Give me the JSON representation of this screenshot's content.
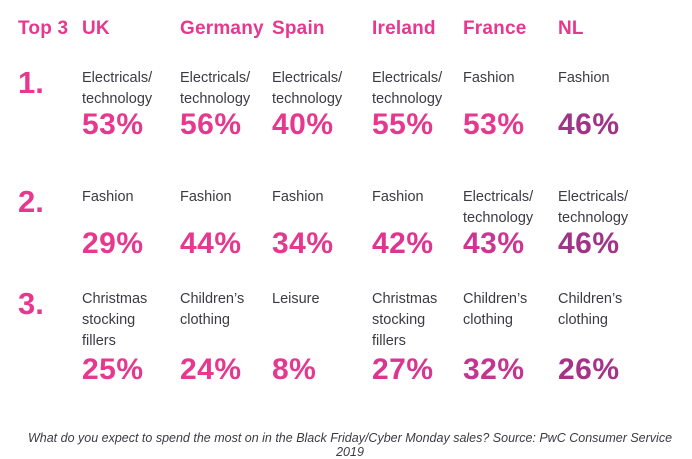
{
  "header": {
    "title": "Top 3",
    "countries": [
      "UK",
      "Germany",
      "Spain",
      "Ireland",
      "France",
      "NL"
    ]
  },
  "colors": {
    "accent_pink": "#e5388e",
    "dark_text": "#3b3b43"
  },
  "rows": [
    {
      "rank": "1.",
      "cells": [
        {
          "category": "Electricals/\ntechnology",
          "value": "53%",
          "color": "#e5388e"
        },
        {
          "category": "Electricals/\ntechnology",
          "value": "56%",
          "color": "#e5388e"
        },
        {
          "category": "Electricals/\ntechnology",
          "value": "40%",
          "color": "#e5388e"
        },
        {
          "category": "Electricals/\ntechnology",
          "value": "55%",
          "color": "#e5388e"
        },
        {
          "category": "Fashion",
          "value": "53%",
          "color": "#e5388e"
        },
        {
          "category": "Fashion",
          "value": "46%",
          "color": "#a03487"
        }
      ]
    },
    {
      "rank": "2.",
      "cells": [
        {
          "category": "Fashion",
          "value": "29%",
          "color": "#e5388e"
        },
        {
          "category": "Fashion",
          "value": "44%",
          "color": "#e5388e"
        },
        {
          "category": "Fashion",
          "value": "34%",
          "color": "#e5388e"
        },
        {
          "category": "Fashion",
          "value": "42%",
          "color": "#df3590"
        },
        {
          "category": "Electricals/\ntechnology",
          "value": "43%",
          "color": "#cc3590"
        },
        {
          "category": "Electricals/\ntechnology",
          "value": "46%",
          "color": "#a03487"
        }
      ]
    },
    {
      "rank": "3.",
      "cells": [
        {
          "category": "Christmas\nstocking\nfillers",
          "value": "25%",
          "color": "#e5388e"
        },
        {
          "category": "Children’s\nclothing",
          "value": "24%",
          "color": "#e5388e"
        },
        {
          "category": "Leisure",
          "value": "8%",
          "color": "#e5388e"
        },
        {
          "category": "Christmas\nstocking\nfillers",
          "value": "27%",
          "color": "#d83691"
        },
        {
          "category": "Children’s\nclothing",
          "value": "32%",
          "color": "#c23590"
        },
        {
          "category": "Children’s\nclothing",
          "value": "26%",
          "color": "#a53488"
        }
      ]
    }
  ],
  "footer": {
    "caption": "What do you expect to spend the most on in the Black Friday/Cyber Monday sales? Source: PwC Consumer Service 2019"
  },
  "chart_data": {
    "type": "table",
    "title": "Top 3",
    "columns": [
      "UK",
      "Germany",
      "Spain",
      "Ireland",
      "France",
      "NL"
    ],
    "rows": [
      {
        "rank": 1,
        "categories": [
          "Electricals/technology",
          "Electricals/technology",
          "Electricals/technology",
          "Electricals/technology",
          "Fashion",
          "Fashion"
        ],
        "values_pct": [
          53,
          56,
          40,
          55,
          53,
          46
        ]
      },
      {
        "rank": 2,
        "categories": [
          "Fashion",
          "Fashion",
          "Fashion",
          "Fashion",
          "Electricals/technology",
          "Electricals/technology"
        ],
        "values_pct": [
          29,
          44,
          34,
          42,
          43,
          46
        ]
      },
      {
        "rank": 3,
        "categories": [
          "Christmas stocking fillers",
          "Children’s clothing",
          "Leisure",
          "Christmas stocking fillers",
          "Children’s clothing",
          "Children’s clothing"
        ],
        "values_pct": [
          25,
          24,
          8,
          27,
          32,
          26
        ]
      }
    ],
    "caption": "What do you expect to spend the most on in the Black Friday/Cyber Monday sales? Source: PwC Consumer Service 2019"
  }
}
